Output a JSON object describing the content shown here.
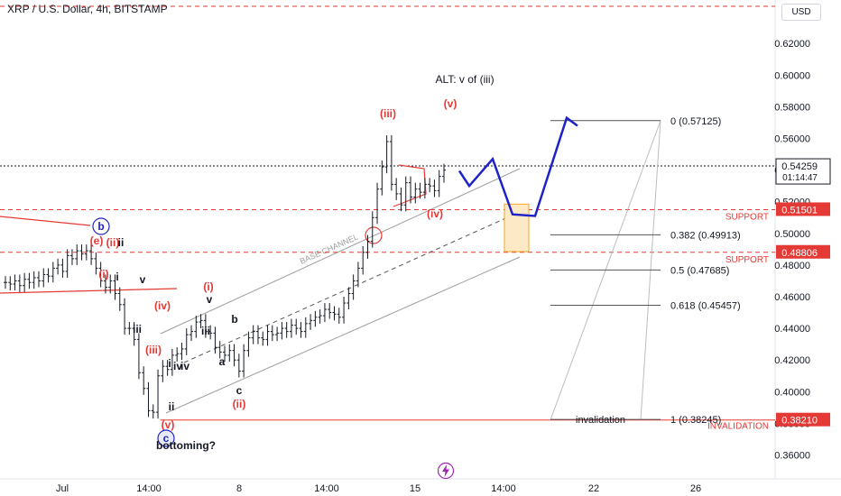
{
  "header": {
    "title": "XRP / U.S. Dollar, 4h, BITSTAMP",
    "currency": "USD"
  },
  "colors": {
    "up": "#131722",
    "red": "#e53935",
    "blue": "#1e22c9",
    "orange": "#f5a623",
    "channel": "#9e9e9e"
  },
  "chart_data": {
    "type": "line",
    "title": "XRP / U.S. Dollar, 4h, BITSTAMP",
    "ylim": [
      0.36,
      0.63
    ],
    "y_ticks": [
      "0.62000",
      "0.60000",
      "0.58000",
      "0.56000",
      "0.54000",
      "0.52000",
      "0.50000",
      "0.48000",
      "0.46000",
      "0.44000",
      "0.42000",
      "0.40000",
      "0.38000",
      "0.36000"
    ],
    "x_ticks": [
      "Jul",
      "14:00",
      "8",
      "14:00",
      "15",
      "14:00",
      "22",
      "26"
    ],
    "series": [
      {
        "values": [
          0.469,
          0.468,
          0.47,
          0.467,
          0.471,
          0.469,
          0.472,
          0.47,
          0.474,
          0.473,
          0.478,
          0.48,
          0.476,
          0.486,
          0.484,
          0.489,
          0.487,
          0.489,
          0.484,
          0.478,
          0.47,
          0.466,
          0.47,
          0.462,
          0.455,
          0.44,
          0.44,
          0.433,
          0.412,
          0.402,
          0.388,
          0.387,
          0.41,
          0.416,
          0.414,
          0.423,
          0.424,
          0.427,
          0.436,
          0.438,
          0.444,
          0.445,
          0.438,
          0.437,
          0.428,
          0.425,
          0.423,
          0.426,
          0.42,
          0.413,
          0.426,
          0.434,
          0.438,
          0.434,
          0.433,
          0.438,
          0.436,
          0.437,
          0.44,
          0.438,
          0.442,
          0.44,
          0.438,
          0.443,
          0.445,
          0.447,
          0.448,
          0.452,
          0.45,
          0.449,
          0.447,
          0.456,
          0.462,
          0.47,
          0.478,
          0.488,
          0.495,
          0.51,
          0.528,
          0.542,
          0.558,
          0.531,
          0.525,
          0.518,
          0.532,
          0.523,
          0.528,
          0.526,
          0.531,
          0.53,
          0.527,
          0.536,
          0.54
        ]
      }
    ],
    "current_price": "0.54259",
    "countdown": "01:14:47",
    "support_levels": [
      {
        "price": "0.51501",
        "label": "SUPPORT"
      },
      {
        "price": "0.48806",
        "label": "SUPPORT"
      }
    ],
    "invalidation_level": {
      "price": "0.38210",
      "label": "INVALIDATION"
    },
    "fib_levels": [
      {
        "ratio": "0",
        "price": "0.57125",
        "text": "0 (0.57125)"
      },
      {
        "ratio": "0.382",
        "price": "0.49913",
        "text": "0.382 (0.49913)"
      },
      {
        "ratio": "0.5",
        "price": "0.47685",
        "text": "0.5 (0.47685)"
      },
      {
        "ratio": "0.618",
        "price": "0.45457",
        "text": "0.618 (0.45457)"
      },
      {
        "ratio": "1",
        "price": "0.38245",
        "text": "1 (0.38245)",
        "note": "invalidation"
      }
    ],
    "projection": {
      "prices": [
        0.5395,
        0.53,
        0.547,
        0.512,
        0.511,
        0.573,
        0.568
      ],
      "stage_labels": [
        "ALT: v of (iii)"
      ]
    },
    "wave_labels": [
      {
        "text": "b",
        "color": "blue",
        "circled": true,
        "price": 0.504
      },
      {
        "text": "(e)",
        "color": "red",
        "price": 0.493
      },
      {
        "text": "(ii)",
        "color": "red",
        "price": 0.492
      },
      {
        "text": "ii",
        "color": "black",
        "price": 0.493
      },
      {
        "text": "(i)",
        "color": "red",
        "price": 0.468
      },
      {
        "text": "i",
        "color": "black",
        "price": 0.467
      },
      {
        "text": "v",
        "color": "black",
        "price": 0.47
      },
      {
        "text": "(iv)",
        "color": "red",
        "price": 0.451
      },
      {
        "text": "iii",
        "color": "black",
        "price": 0.439
      },
      {
        "text": "iv",
        "color": "black",
        "price": 0.436
      },
      {
        "text": "(iii)",
        "color": "red",
        "price": 0.428
      },
      {
        "text": "i",
        "color": "black",
        "price": 0.418
      },
      {
        "text": "iv",
        "color": "black",
        "price": 0.413
      },
      {
        "text": "ii",
        "color": "black",
        "price": 0.391
      },
      {
        "text": "(v)",
        "color": "red",
        "price": 0.377
      },
      {
        "text": "c",
        "color": "blue",
        "circled": true,
        "price": 0.369
      },
      {
        "text": "bottoming?",
        "color": "black",
        "price": 0.363
      },
      {
        "text": "(i)",
        "color": "red",
        "price": 0.466
      },
      {
        "text": "v",
        "color": "black",
        "price": 0.455
      },
      {
        "text": "iii",
        "color": "black",
        "price": 0.442
      },
      {
        "text": "b",
        "color": "black",
        "price": 0.448
      },
      {
        "text": "a",
        "color": "black",
        "price": 0.423
      },
      {
        "text": "c",
        "color": "black",
        "price": 0.399
      },
      {
        "text": "(ii)",
        "color": "red",
        "price": 0.39
      },
      {
        "text": "(iii)",
        "color": "red",
        "price": 0.572
      },
      {
        "text": "(v)",
        "color": "red",
        "price": 0.58
      },
      {
        "text": "(iv)",
        "color": "red",
        "price": 0.51
      }
    ],
    "annotations": [
      "BASE CHANNEL",
      "ALT: v of (iii)",
      "invalidation"
    ]
  }
}
